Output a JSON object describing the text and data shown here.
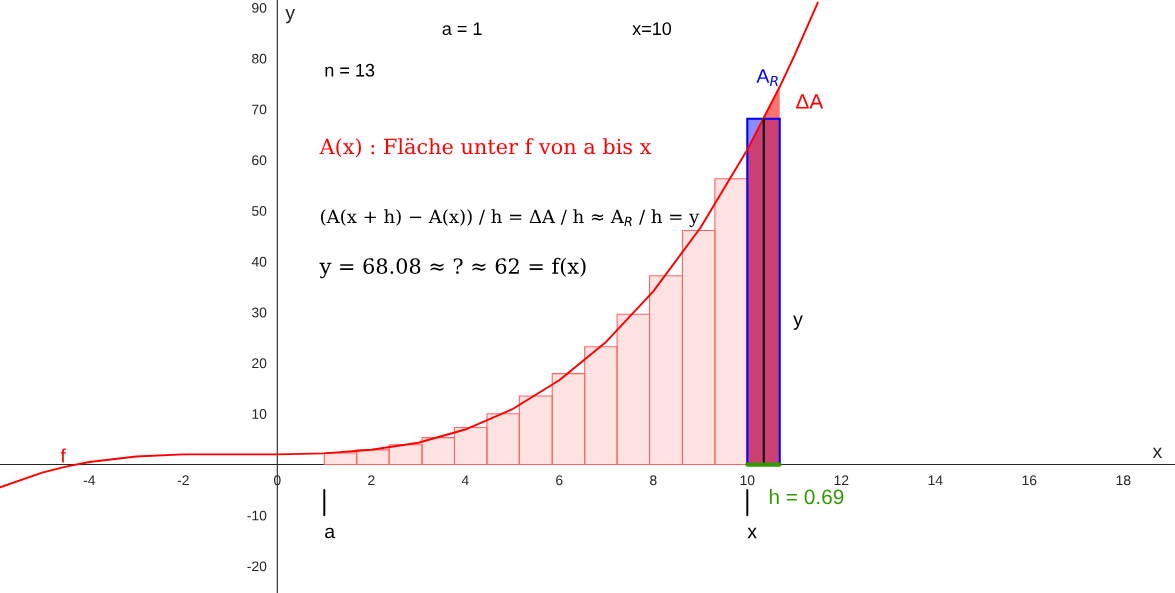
{
  "chart_data": {
    "type": "histogram",
    "xlabel": "x",
    "ylabel": "y",
    "xlim": [
      -5.9,
      19.1
    ],
    "ylim": [
      -25.3,
      91.5
    ],
    "xticks": [
      -4,
      -2,
      0,
      2,
      4,
      6,
      8,
      10,
      12,
      14,
      16,
      18
    ],
    "yticks": [
      -20,
      -10,
      10,
      20,
      30,
      40,
      50,
      60,
      70,
      80,
      90
    ],
    "grid": false,
    "legend": false,
    "series": [
      {
        "color": "#ff6666",
        "bins": [
          1,
          1.69,
          2.38,
          3.08,
          3.77,
          4.46,
          5.15,
          5.85,
          6.54,
          7.23,
          7.92,
          8.62,
          9.31,
          10
        ],
        "values": [
          2.3,
          2.9,
          3.9,
          5.3,
          7.3,
          10.0,
          13.5,
          17.9,
          23.2,
          29.6,
          37.2,
          46.1,
          56.3
        ]
      },
      {
        "type": "area",
        "color": "#ff0000",
        "x": [
          10,
          10.35,
          10.69
        ],
        "values": [
          62,
          68.1,
          74.4
        ]
      },
      {
        "type": "histogram",
        "color": "#0000ff",
        "bins": [
          10,
          10.69
        ],
        "values": [
          68.1
        ]
      },
      {
        "type": "line",
        "color": "#ff0000",
        "x": [
          -5.9,
          -5,
          -4.5,
          -4,
          -3,
          -2,
          -1,
          0,
          1,
          2,
          3,
          4,
          5,
          6,
          7,
          8,
          9,
          10,
          10.69,
          11,
          11.5
        ],
        "values": [
          -4.5,
          -1.6,
          -0.4,
          0.5,
          1.6,
          2.0,
          2.0,
          2.0,
          2.2,
          2.9,
          4.3,
          6.9,
          10.9,
          16.6,
          24.2,
          34.1,
          46.6,
          62.0,
          74.4,
          80.5,
          91.0
        ]
      },
      {
        "type": "line",
        "color": "#000000",
        "x": [
          10.35,
          10.35
        ],
        "values": [
          0,
          68.1
        ]
      },
      {
        "type": "line",
        "color": "#339900",
        "x": [
          10,
          10.69
        ],
        "values": [
          0,
          0
        ]
      },
      {
        "type": "line",
        "color": "#000000",
        "x": [
          1,
          1
        ],
        "values": [
          -5,
          -10
        ]
      },
      {
        "type": "line",
        "color": "#000000",
        "x": [
          10,
          10
        ],
        "values": [
          -5,
          -10
        ]
      }
    ],
    "annotations": [
      "a = 1",
      "x=10",
      "n = 13",
      "A(x) : Fläche unter f von a bis x",
      "(A(x + h) − A(x)) / h = ΔA / h ≈ A$_{R}$ / h = y",
      "y = 68.08 ≈ ? ≈ 62 = f(x)",
      {
        "text": "A$_{R}$",
        "x": 10.69,
        "y": 74.4
      },
      "ΔA",
      "y",
      "h = 0.69",
      "a",
      "x",
      {
        "text": "f",
        "x": -4.5,
        "y": -0.4
      }
    ]
  }
}
